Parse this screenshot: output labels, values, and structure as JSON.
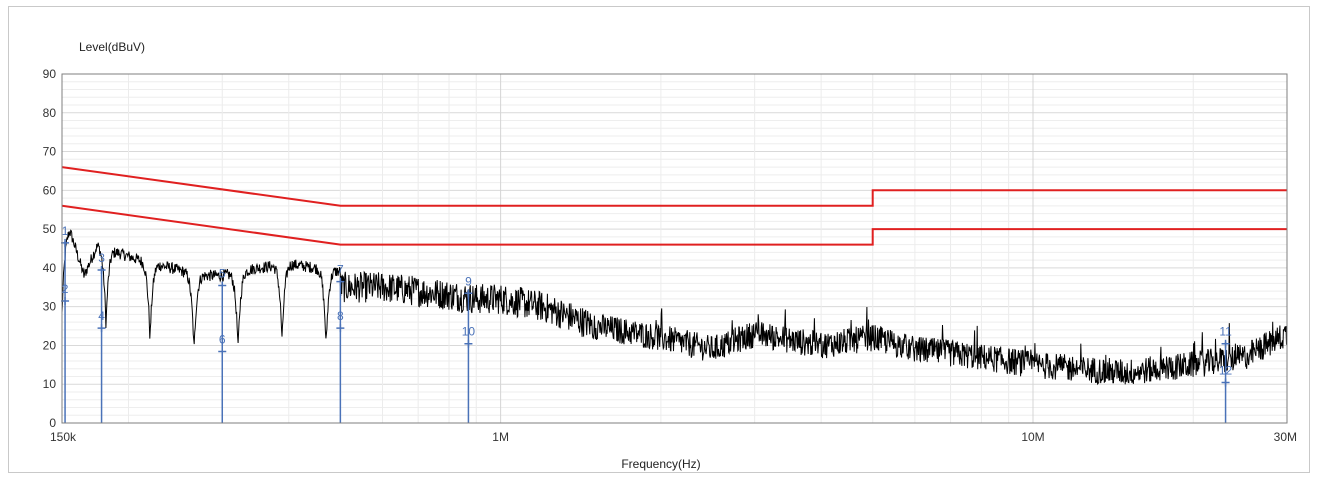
{
  "chart_data": {
    "type": "line",
    "title": "",
    "xlabel": "Frequency(Hz)",
    "ylabel": "Level(dBuV)",
    "xscale": "log",
    "xlim": [
      150000,
      30000000
    ],
    "ylim": [
      0,
      90
    ],
    "grid": true,
    "x_ticks": [
      {
        "label": "150k",
        "value": 150000
      },
      {
        "label": "1M",
        "value": 1000000
      },
      {
        "label": "10M",
        "value": 10000000
      },
      {
        "label": "30M",
        "value": 30000000
      }
    ],
    "y_ticks": [
      0,
      10,
      20,
      30,
      40,
      50,
      60,
      70,
      80,
      90
    ],
    "colors": {
      "trace": "#000000",
      "limit": "#e02020",
      "marker": "#4a72b8"
    },
    "limit_lines": [
      {
        "x": [
          150000,
          500000,
          500000,
          5000000,
          5000000,
          30000000
        ],
        "y": [
          66,
          56,
          56,
          56,
          60,
          60
        ]
      },
      {
        "x": [
          150000,
          500000,
          500000,
          5000000,
          5000000,
          30000000
        ],
        "y": [
          56,
          46,
          46,
          46,
          50,
          50
        ]
      }
    ],
    "trace_keypoints": {
      "x": [
        150000,
        155000,
        165000,
        175000,
        190000,
        210000,
        240000,
        270000,
        300000,
        350000,
        400000,
        450000,
        500000,
        600000,
        700000,
        800000,
        900000,
        1000000,
        1200000,
        1500000,
        2000000,
        2500000,
        3000000,
        4000000,
        5000000,
        6000000,
        8000000,
        10000000,
        12000000,
        15000000,
        20000000,
        25000000,
        30000000
      ],
      "y": [
        44,
        46,
        34,
        42,
        40,
        38,
        36,
        34,
        34,
        36,
        37,
        36,
        35,
        35,
        34,
        33,
        32,
        32,
        30,
        25,
        22,
        19,
        23,
        20,
        22,
        19,
        17,
        15,
        14,
        13,
        15,
        17,
        23
      ]
    },
    "markers": [
      {
        "label": "1",
        "x": 152000,
        "y": 48
      },
      {
        "label": "2",
        "x": 152000,
        "y": 33
      },
      {
        "label": "3",
        "x": 178000,
        "y": 41
      },
      {
        "label": "4",
        "x": 178000,
        "y": 26
      },
      {
        "label": "5",
        "x": 300000,
        "y": 37
      },
      {
        "label": "6",
        "x": 300000,
        "y": 20
      },
      {
        "label": "7",
        "x": 500000,
        "y": 38
      },
      {
        "label": "8",
        "x": 500000,
        "y": 26
      },
      {
        "label": "9",
        "x": 870000,
        "y": 35
      },
      {
        "label": "10",
        "x": 870000,
        "y": 22
      },
      {
        "label": "11",
        "x": 23000000,
        "y": 22
      },
      {
        "label": "12",
        "x": 23000000,
        "y": 12
      }
    ]
  }
}
